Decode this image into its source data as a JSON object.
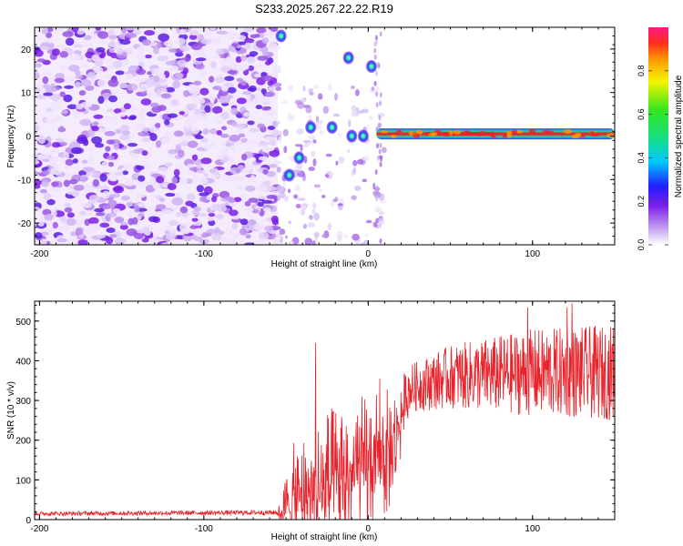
{
  "title": "S233.2025.267.22.22.R19",
  "colors": {
    "snr_line": "#e8232b",
    "spectro_fg": "#8a2be2",
    "ridge": "#e8232b"
  },
  "chart_data": [
    {
      "id": "spectrogram",
      "type": "heatmap",
      "xlabel": "Height of straight line (km)",
      "ylabel": "Frequency (Hz)",
      "xlim": [
        -203,
        150
      ],
      "ylim": [
        -25,
        25
      ],
      "xticks": [
        -200,
        -100,
        0,
        100
      ],
      "yticks": [
        -20,
        -10,
        0,
        10,
        20
      ],
      "colorbar": {
        "label": "Normalized spectral amplitude",
        "range": [
          0,
          1
        ],
        "ticks": [
          0.0,
          0.2,
          0.4,
          0.6,
          0.8
        ],
        "tick_labels": [
          "0.0",
          "0.2",
          "0.4",
          "0.6",
          "0.8"
        ]
      },
      "features": {
        "noise_region_x": [
          -203,
          -55
        ],
        "ridge": {
          "x_start": 5,
          "x_end": 150,
          "freq": 0.5,
          "peak_x": [
            35,
            75
          ]
        },
        "blobs": [
          {
            "x": -53,
            "f": 23,
            "amp": 0.35
          },
          {
            "x": -12,
            "f": 18,
            "amp": 0.3
          },
          {
            "x": 2,
            "f": 16,
            "amp": 0.3
          },
          {
            "x": -35,
            "f": 2,
            "amp": 0.3
          },
          {
            "x": -22,
            "f": 2,
            "amp": 0.3
          },
          {
            "x": -10,
            "f": 0,
            "amp": 0.3
          },
          {
            "x": -3,
            "f": 0,
            "amp": 0.3
          },
          {
            "x": -48,
            "f": -9,
            "amp": 0.3
          },
          {
            "x": -42,
            "f": -5,
            "amp": 0.2
          }
        ]
      }
    },
    {
      "id": "snr",
      "type": "line",
      "xlabel": "Height of straight line (km)",
      "ylabel": "SNR (10 * v/v)",
      "xlim": [
        -203,
        150
      ],
      "ylim": [
        0,
        550
      ],
      "xticks": [
        -200,
        -100,
        0,
        100
      ],
      "yticks": [
        0,
        100,
        200,
        300,
        400,
        500
      ],
      "series": [
        {
          "name": "SNR",
          "envelope": [
            {
              "x": -203,
              "baseline": 10,
              "jitter": 10
            },
            {
              "x": -55,
              "baseline": 12,
              "jitter": 12
            },
            {
              "x": -45,
              "baseline": 50,
              "jitter": 150
            },
            {
              "x": -25,
              "baseline": 80,
              "jitter": 200
            },
            {
              "x": 0,
              "baseline": 130,
              "jitter": 200
            },
            {
              "x": 15,
              "baseline": 180,
              "jitter": 150
            },
            {
              "x": 25,
              "baseline": 330,
              "jitter": 60
            },
            {
              "x": 50,
              "baseline": 360,
              "jitter": 80
            },
            {
              "x": 100,
              "baseline": 370,
              "jitter": 110
            },
            {
              "x": 150,
              "baseline": 370,
              "jitter": 120
            }
          ],
          "spikes": [
            {
              "x": -32,
              "y": 445
            },
            {
              "x": 7,
              "y": 355
            },
            {
              "x": 97,
              "y": 535
            },
            {
              "x": 121,
              "y": 535
            },
            {
              "x": 124,
              "y": 545
            }
          ]
        }
      ]
    }
  ]
}
